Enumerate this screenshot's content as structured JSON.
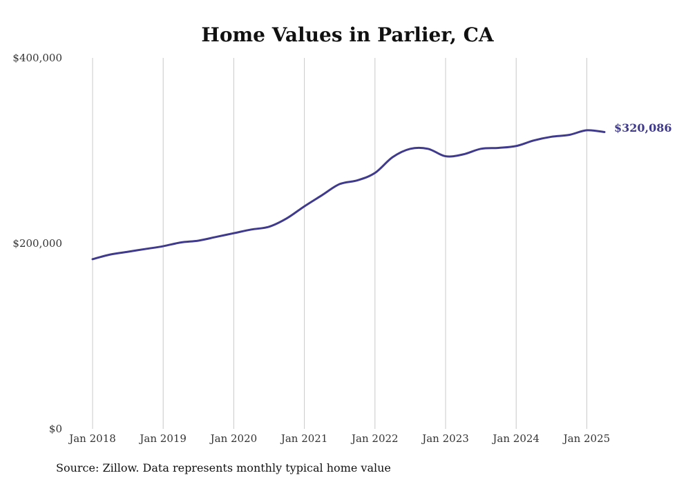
{
  "chart_data": {
    "type": "line",
    "title": "Home Values in Parlier, CA",
    "xlabel": "",
    "ylabel": "",
    "x_ticks": [
      "Jan 2018",
      "Jan 2019",
      "Jan 2020",
      "Jan 2021",
      "Jan 2022",
      "Jan 2023",
      "Jan 2024",
      "Jan 2025"
    ],
    "y_ticks": [
      "$0",
      "$200,000",
      "$400,000"
    ],
    "ylim": [
      0,
      400000
    ],
    "xlim": [
      "2018-01",
      "2025-12"
    ],
    "grid": "vertical",
    "legend": "none",
    "series": [
      {
        "color": "#3f3a8c",
        "points": [
          {
            "x": "2018-01",
            "y": 183000
          },
          {
            "x": "2018-04",
            "y": 188000
          },
          {
            "x": "2018-07",
            "y": 191000
          },
          {
            "x": "2018-10",
            "y": 194000
          },
          {
            "x": "2019-01",
            "y": 197000
          },
          {
            "x": "2019-04",
            "y": 201000
          },
          {
            "x": "2019-07",
            "y": 203000
          },
          {
            "x": "2019-10",
            "y": 207000
          },
          {
            "x": "2020-01",
            "y": 211000
          },
          {
            "x": "2020-04",
            "y": 215000
          },
          {
            "x": "2020-07",
            "y": 218000
          },
          {
            "x": "2020-10",
            "y": 227000
          },
          {
            "x": "2021-01",
            "y": 240000
          },
          {
            "x": "2021-04",
            "y": 252000
          },
          {
            "x": "2021-07",
            "y": 264000
          },
          {
            "x": "2021-10",
            "y": 268000
          },
          {
            "x": "2022-01",
            "y": 276000
          },
          {
            "x": "2022-04",
            "y": 293000
          },
          {
            "x": "2022-07",
            "y": 302000
          },
          {
            "x": "2022-10",
            "y": 302000
          },
          {
            "x": "2023-01",
            "y": 294000
          },
          {
            "x": "2023-04",
            "y": 296000
          },
          {
            "x": "2023-07",
            "y": 302000
          },
          {
            "x": "2023-10",
            "y": 303000
          },
          {
            "x": "2024-01",
            "y": 305000
          },
          {
            "x": "2024-04",
            "y": 311000
          },
          {
            "x": "2024-07",
            "y": 315000
          },
          {
            "x": "2024-10",
            "y": 317000
          },
          {
            "x": "2025-01",
            "y": 322000
          },
          {
            "x": "2025-04",
            "y": 320086
          }
        ]
      }
    ],
    "end_label": "$320,086"
  },
  "source_note": "Source: Zillow. Data represents monthly typical home value"
}
